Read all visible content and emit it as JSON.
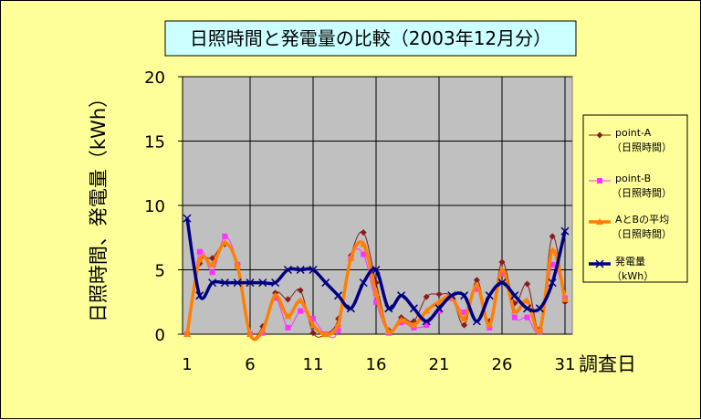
{
  "chart_data": {
    "type": "line",
    "title": "日照時間と発電量の比較（2003年12月分）",
    "xlabel": "調査日",
    "ylabel": "日照時間、発電量（kWh）",
    "xlim": [
      1,
      31
    ],
    "ylim": [
      0,
      20
    ],
    "x_ticks": [
      "1",
      "6",
      "11",
      "16",
      "21",
      "26",
      "31"
    ],
    "y_ticks": [
      "0",
      "5",
      "10",
      "15",
      "20"
    ],
    "grid": true,
    "legend_position": "right",
    "x": [
      1,
      2,
      3,
      4,
      5,
      6,
      7,
      8,
      9,
      10,
      11,
      12,
      13,
      14,
      15,
      16,
      17,
      18,
      19,
      20,
      21,
      22,
      23,
      24,
      25,
      26,
      27,
      28,
      29,
      30,
      31
    ],
    "series": [
      {
        "name": "point-A",
        "name2": "（日照時間）",
        "color": "#8b1a1a",
        "marker": "diamond",
        "values": [
          0,
          5.5,
          5.9,
          7,
          5.4,
          0,
          0.6,
          3.2,
          2.7,
          3.4,
          0.1,
          0,
          1.2,
          6.1,
          7.9,
          4,
          0.3,
          1.3,
          1,
          2.9,
          3.1,
          2.9,
          0.7,
          4.2,
          1,
          5.6,
          2.4,
          3.9,
          0.4,
          7.6,
          2.5
        ]
      },
      {
        "name": "point-B",
        "name2": "（日照時間）",
        "color": "#ff33ff",
        "marker": "square",
        "values": [
          0,
          6.4,
          4.8,
          7.6,
          5.4,
          0,
          0.1,
          2.8,
          0.5,
          1.8,
          1.2,
          0,
          0.3,
          5.9,
          6.2,
          2.5,
          0.1,
          0.9,
          0.5,
          0.7,
          1.8,
          2.8,
          1.7,
          3.5,
          0.5,
          4.7,
          1.3,
          1.3,
          0.2,
          5.4,
          2.8
        ]
      },
      {
        "name": "AとBの平均",
        "name2": "（日照時間）",
        "color": "#ff7f00",
        "marker": "triangle",
        "values": [
          0,
          5.8,
          5.4,
          7.1,
          5.3,
          0,
          0.3,
          3,
          1.4,
          2.6,
          0.7,
          0,
          0.8,
          5.9,
          7,
          3.2,
          0.2,
          1.1,
          0.7,
          1.8,
          2.5,
          2.9,
          1.2,
          3.8,
          0.7,
          5,
          1.8,
          2.6,
          0.3,
          6.5,
          2.7
        ]
      },
      {
        "name": "発電量",
        "name2": "（kWh）",
        "color": "#000080",
        "marker": "x",
        "values": [
          9,
          3,
          4,
          4,
          4,
          4,
          4,
          4,
          5,
          5,
          5,
          4,
          3,
          2,
          4,
          5,
          2,
          3,
          2,
          1,
          2,
          3,
          3,
          1,
          3,
          4,
          3,
          2,
          2,
          4,
          8
        ]
      }
    ]
  }
}
